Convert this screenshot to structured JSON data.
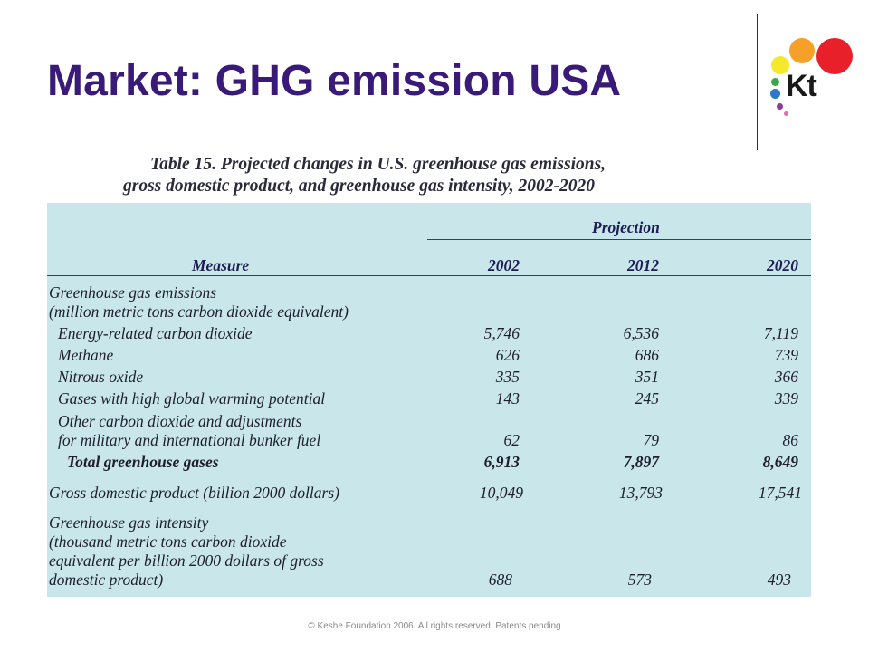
{
  "slide": {
    "title": "Market: GHG emission USA",
    "footer": "© Keshe Foundation 2006. All rights reserved. Patents pending"
  },
  "logo": {
    "text": "Kt",
    "colors": {
      "red": "#e8202a",
      "orange": "#f6a02a",
      "yellow": "#f2ea2a",
      "green": "#3aa84a",
      "blue": "#2a7ac8",
      "purple": "#8a3a9a",
      "pink": "#e86aa8"
    }
  },
  "table": {
    "caption_line1": "Table 15. Projected changes in U.S. greenhouse gas emissions,",
    "caption_line2": "gross domestic product, and greenhouse gas  intensity, 2002-2020",
    "header_group": "Projection",
    "col_measure": "Measure",
    "years": [
      "2002",
      "2012",
      "2020"
    ],
    "section_ghg": {
      "label_line1": "Greenhouse gas emissions",
      "label_line2": "(million metric tons carbon dioxide equivalent)"
    },
    "rows": [
      {
        "label": "Energy-related carbon dioxide",
        "v2002": "5,746",
        "v2012": "6,536",
        "v2020": "7,119"
      },
      {
        "label": "Methane",
        "v2002": "626",
        "v2012": "686",
        "v2020": "739"
      },
      {
        "label": "Nitrous oxide",
        "v2002": "335",
        "v2012": "351",
        "v2020": "366"
      },
      {
        "label": "Gases with high global warming potential",
        "v2002": "143",
        "v2012": "245",
        "v2020": "339"
      }
    ],
    "other": {
      "label_line1": "Other carbon dioxide and adjustments",
      "label_line2": "for military and international bunker fuel",
      "v2002": "62",
      "v2012": "79",
      "v2020": "86"
    },
    "total": {
      "label": "Total greenhouse gases",
      "v2002": "6,913",
      "v2012": "7,897",
      "v2020": "8,649"
    },
    "gdp": {
      "label": "Gross domestic product (billion 2000 dollars)",
      "v2002": "10,049",
      "v2012": "13,793",
      "v2020": "17,541"
    },
    "intensity": {
      "label_line1": "Greenhouse gas intensity",
      "label_line2": "(thousand metric tons carbon dioxide",
      "label_line3": "equivalent per billion 2000 dollars of gross",
      "label_line4": "domestic product)",
      "v2002": "688",
      "v2012": "573",
      "v2020": "493"
    }
  }
}
